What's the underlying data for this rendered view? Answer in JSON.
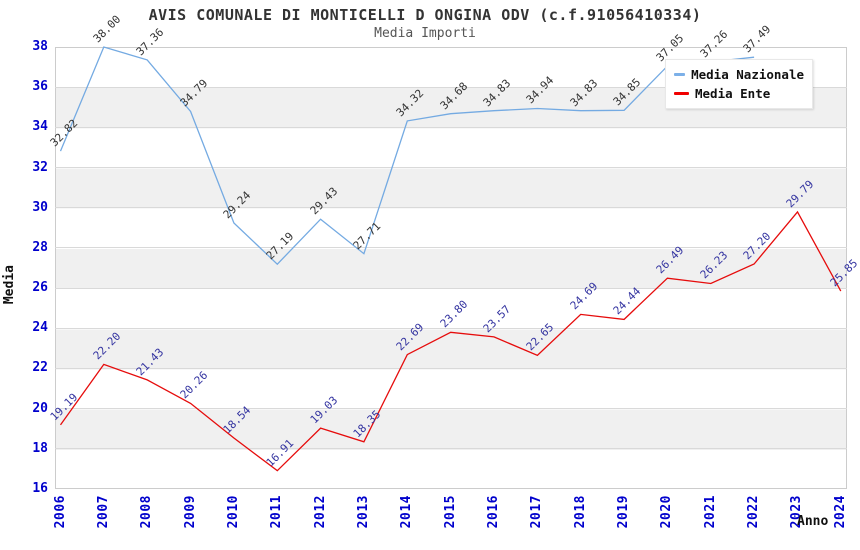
{
  "header": {
    "title": "AVIS COMUNALE DI MONTICELLI D ONGINA ODV (c.f.91056410334)",
    "subtitle": "Media Importi"
  },
  "axes": {
    "y_label": "Media",
    "x_label": "Anno",
    "y_ticks": [
      38,
      36,
      34,
      32,
      30,
      28,
      26,
      24,
      22,
      20,
      18,
      16
    ],
    "x_ticks": [
      "2006",
      "2007",
      "2008",
      "2009",
      "2010",
      "2011",
      "2012",
      "2013",
      "2014",
      "2015",
      "2016",
      "2017",
      "2018",
      "2019",
      "2020",
      "2021",
      "2022",
      "2023",
      "2024"
    ]
  },
  "legend": {
    "items": [
      {
        "label": "Media Nazionale",
        "color": "#7cb0e8"
      },
      {
        "label": "Media Ente",
        "color": "#f00000"
      }
    ]
  },
  "colors": {
    "tick_label": "#0000cc",
    "grid": "#d9d9d9",
    "band_gray": "#f0f0f0",
    "title": "#333333",
    "subtitle": "#555555",
    "nazionale_line": "#74aae2",
    "ente_line": "#e60c0c",
    "nazionale_point_label": "#333333",
    "ente_point_label": "#3333a0"
  },
  "chart_data": {
    "type": "line",
    "title": "AVIS COMUNALE DI MONTICELLI D ONGINA ODV (c.f.91056410334)",
    "subtitle": "Media Importi",
    "xlabel": "Anno",
    "ylabel": "Media",
    "ylim": [
      16,
      38
    ],
    "grid": "horizontal-bands",
    "legend_position": "top-right-inside",
    "x": [
      2006,
      2007,
      2008,
      2009,
      2010,
      2011,
      2012,
      2013,
      2014,
      2015,
      2016,
      2017,
      2018,
      2019,
      2020,
      2021,
      2022,
      2023,
      2024
    ],
    "series": [
      {
        "name": "Media Nazionale",
        "color": "#74aae2",
        "label_color": "#333333",
        "values": [
          32.82,
          38.0,
          37.36,
          34.79,
          29.24,
          27.19,
          29.43,
          27.71,
          34.32,
          34.68,
          34.83,
          34.94,
          34.83,
          34.85,
          37.05,
          37.26,
          37.49
        ]
      },
      {
        "name": "Media Ente",
        "color": "#e60c0c",
        "label_color": "#3333a0",
        "values": [
          19.19,
          22.2,
          21.43,
          20.26,
          18.54,
          16.91,
          19.03,
          18.35,
          22.69,
          23.8,
          23.57,
          22.65,
          24.69,
          24.44,
          26.49,
          26.23,
          27.2,
          29.79,
          25.85
        ]
      }
    ]
  }
}
